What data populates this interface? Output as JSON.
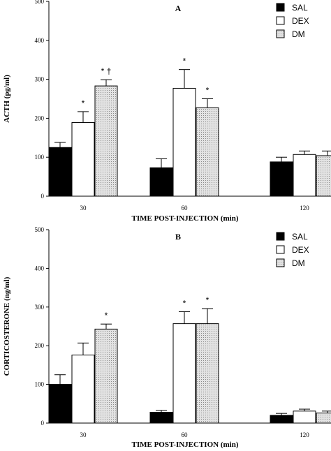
{
  "chart_data": [
    {
      "type": "bar",
      "title": "A",
      "xlabel": "TIME POST-INJECTION (min)",
      "ylabel": "ACTH (pg/ml)",
      "ylim": [
        0,
        500
      ],
      "yticks": [
        0,
        100,
        200,
        300,
        400,
        500
      ],
      "categories": [
        "30",
        "60",
        "120"
      ],
      "legend_position": "top-right",
      "series": [
        {
          "name": "SAL",
          "color": "#000000",
          "pattern": "solid",
          "values": [
            125,
            73,
            88
          ],
          "errors": [
            13,
            23,
            12
          ]
        },
        {
          "name": "DEX",
          "color": "#ffffff",
          "pattern": "open",
          "values": [
            189,
            277,
            107
          ],
          "errors": [
            28,
            48,
            9
          ]
        },
        {
          "name": "DM",
          "color": "#d4d4d4",
          "pattern": "dotted",
          "values": [
            283,
            227,
            104
          ],
          "errors": [
            16,
            23,
            12
          ]
        }
      ],
      "annotations": [
        {
          "category": "30",
          "series": "DEX",
          "text": "*"
        },
        {
          "category": "30",
          "series": "DM",
          "text": "* †"
        },
        {
          "category": "60",
          "series": "DEX",
          "text": "*"
        },
        {
          "category": "60",
          "series": "DM",
          "text": "*"
        }
      ]
    },
    {
      "type": "bar",
      "title": "B",
      "xlabel": "TIME POST-INJECTION (min)",
      "ylabel": "CORTICOSTERONE (ng/ml)",
      "ylim": [
        0,
        500
      ],
      "yticks": [
        0,
        100,
        200,
        300,
        400,
        500
      ],
      "categories": [
        "30",
        "60",
        "120"
      ],
      "legend_position": "top-right",
      "series": [
        {
          "name": "SAL",
          "color": "#000000",
          "pattern": "solid",
          "values": [
            100,
            28,
            20
          ],
          "errors": [
            25,
            5,
            5
          ]
        },
        {
          "name": "DEX",
          "color": "#ffffff",
          "pattern": "open",
          "values": [
            176,
            257,
            31
          ],
          "errors": [
            31,
            31,
            5
          ]
        },
        {
          "name": "DM",
          "color": "#d4d4d4",
          "pattern": "dotted",
          "values": [
            243,
            257,
            26
          ],
          "errors": [
            13,
            39,
            5
          ]
        }
      ],
      "annotations": [
        {
          "category": "30",
          "series": "DM",
          "text": "*"
        },
        {
          "category": "60",
          "series": "DEX",
          "text": "*"
        },
        {
          "category": "60",
          "series": "DM",
          "text": "*"
        }
      ]
    }
  ]
}
